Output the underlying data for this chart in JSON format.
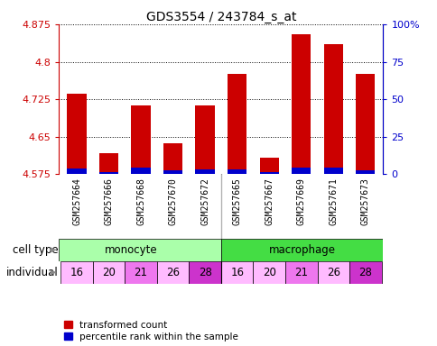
{
  "title": "GDS3554 / 243784_s_at",
  "samples": [
    "GSM257664",
    "GSM257666",
    "GSM257668",
    "GSM257670",
    "GSM257672",
    "GSM257665",
    "GSM257667",
    "GSM257669",
    "GSM257671",
    "GSM257673"
  ],
  "transformed_counts": [
    4.737,
    4.617,
    4.712,
    4.638,
    4.712,
    4.775,
    4.608,
    4.855,
    4.835,
    4.775
  ],
  "percentile_ranks": [
    4.0,
    1.5,
    4.5,
    2.5,
    3.5,
    3.5,
    1.5,
    4.5,
    4.5,
    2.5
  ],
  "ylim_left": [
    4.575,
    4.875
  ],
  "ylim_right": [
    0,
    100
  ],
  "yticks_left": [
    4.575,
    4.65,
    4.725,
    4.8,
    4.875
  ],
  "yticks_right": [
    0,
    25,
    50,
    75,
    100
  ],
  "ytick_labels_right": [
    "0",
    "25",
    "50",
    "75",
    "100%"
  ],
  "individuals": [
    "16",
    "20",
    "21",
    "26",
    "28",
    "16",
    "20",
    "21",
    "26",
    "28"
  ],
  "bar_color_red": "#cc0000",
  "bar_color_blue": "#0000cc",
  "cell_type_monocyte_color": "#aaffaa",
  "cell_type_macrophage_color": "#44dd44",
  "individual_colors_map": {
    "16": "#ffbbff",
    "20": "#ffbbff",
    "21": "#ee77ee",
    "26": "#ffbbff",
    "28": "#cc33cc"
  },
  "label_bg_color": "#cccccc",
  "bar_width": 0.6,
  "baseline": 4.575,
  "background_color": "#ffffff",
  "gridline_color": "#000000",
  "n_monocyte": 5,
  "n_macrophage": 5
}
